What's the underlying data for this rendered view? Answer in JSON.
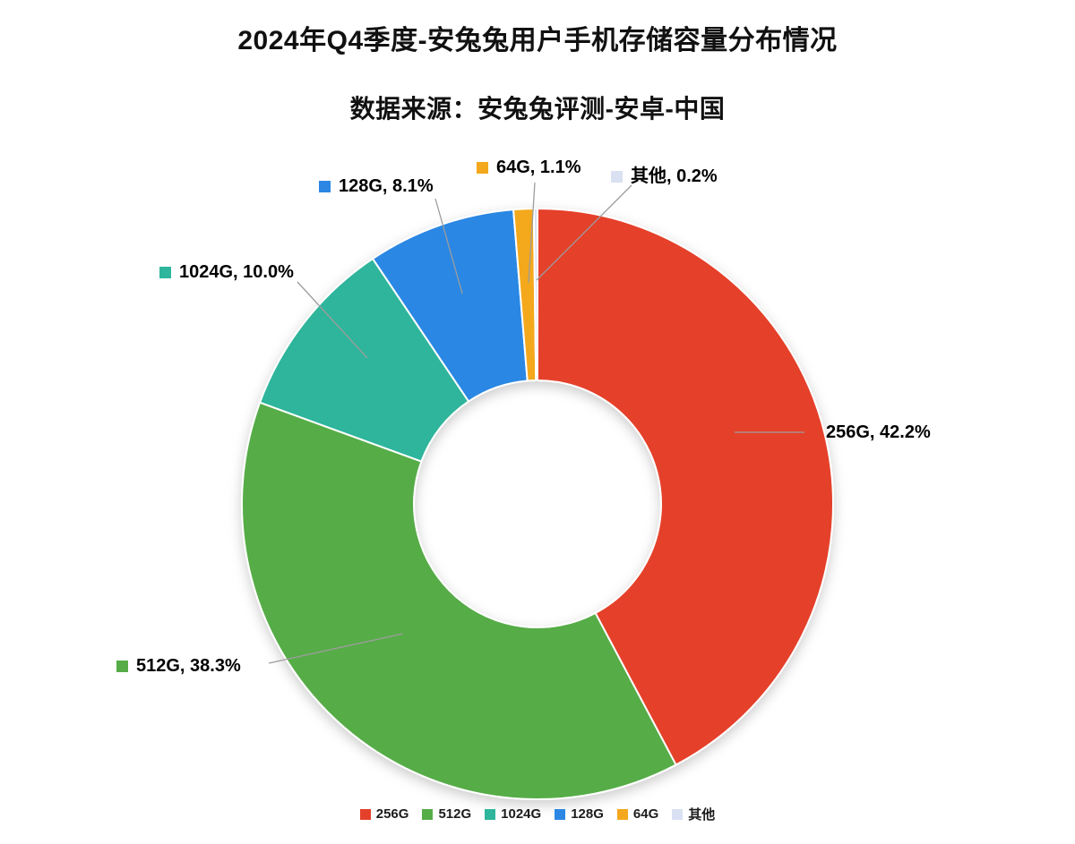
{
  "chart_data": {
    "type": "pie",
    "subtype": "donut",
    "title": "2024年Q4季度-安兔兔用户手机存储容量分布情况",
    "source_note": "数据来源：安兔兔评测-安卓-中国",
    "direction": "clockwise",
    "start_angle_deg": 0,
    "donut_hole_ratio": 0.42,
    "legend_position": "bottom",
    "grid": false,
    "categories": [
      "256G",
      "512G",
      "1024G",
      "128G",
      "64G",
      "其他"
    ],
    "values": [
      42.2,
      38.3,
      10.0,
      8.1,
      1.1,
      0.2
    ],
    "unit": "percent",
    "colors": [
      "#E5402A",
      "#56AC47",
      "#2FB59B",
      "#2B87E3",
      "#F4A81D",
      "#D9E1F2"
    ],
    "labels": [
      "256G, 42.2%",
      "512G, 38.3%",
      "1024G, 10.0%",
      "128G, 8.1%",
      "64G, 1.1%",
      "其他, 0.2%"
    ]
  }
}
